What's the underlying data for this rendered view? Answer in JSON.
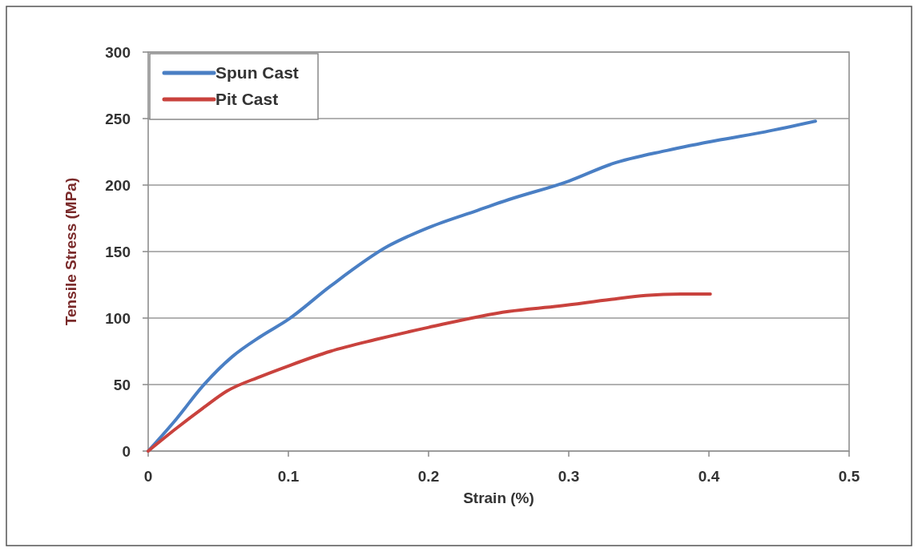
{
  "chart_data": {
    "type": "line",
    "xlabel": "Strain (%)",
    "ylabel": "Tensile Stress (MPa)",
    "xlim": [
      0,
      0.5
    ],
    "xticks": [
      0,
      0.1,
      0.2,
      0.3,
      0.4,
      0.5
    ],
    "ylim": [
      0,
      300
    ],
    "yticks": [
      0,
      50,
      100,
      150,
      200,
      250,
      300
    ],
    "grid": "y",
    "legend": "top left",
    "line_style": "solid",
    "marker": "none",
    "series": [
      {
        "name": "Spun Cast",
        "color": "#4a7fc4",
        "x": [
          0,
          0.02,
          0.039,
          0.06,
          0.08,
          0.1,
          0.13,
          0.171,
          0.2,
          0.235,
          0.257,
          0.3,
          0.331,
          0.37,
          0.408,
          0.44,
          0.476
        ],
        "values": [
          0,
          24,
          49,
          71,
          86,
          99,
          124,
          154,
          168,
          181,
          189,
          203,
          216,
          226,
          234,
          240,
          248
        ]
      },
      {
        "name": "Pit Cast",
        "color": "#c9423d",
        "x": [
          0,
          0.02,
          0.04,
          0.056,
          0.08,
          0.1,
          0.13,
          0.163,
          0.2,
          0.257,
          0.293,
          0.33,
          0.355,
          0.38,
          0.401
        ],
        "values": [
          0,
          17,
          33,
          45,
          56,
          64,
          75,
          84,
          93,
          105,
          109,
          114,
          117,
          118,
          118
        ]
      }
    ]
  }
}
